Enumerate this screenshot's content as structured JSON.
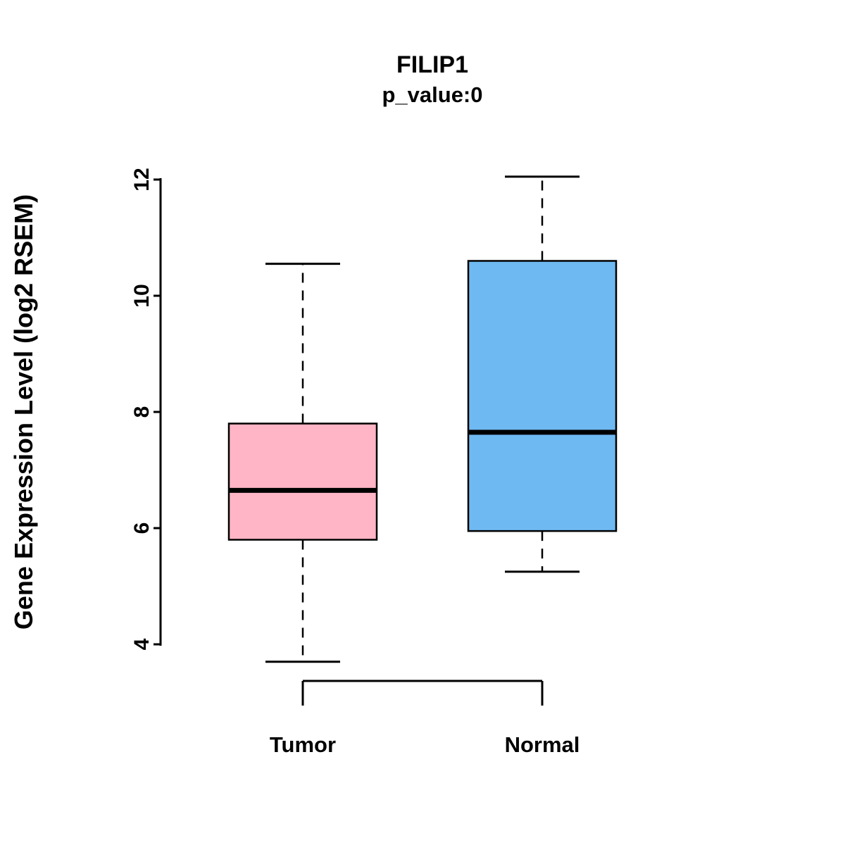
{
  "chart_data": {
    "type": "boxplot",
    "title": "FILIP1",
    "subtitle": "p_value:0",
    "ylabel": "Gene Expression Level (log2 RSEM)",
    "xlabel": "",
    "categories": [
      "Tumor",
      "Normal"
    ],
    "yticks": [
      4,
      6,
      8,
      10,
      12
    ],
    "ylim": [
      3.3,
      12.3
    ],
    "grid": false,
    "legend": "none",
    "series": [
      {
        "name": "Tumor",
        "color": "#FFB5C5",
        "min": 3.7,
        "q1": 5.8,
        "median": 6.65,
        "q3": 7.8,
        "max": 10.55
      },
      {
        "name": "Normal",
        "color": "#6FB9F2",
        "min": 5.25,
        "q1": 5.95,
        "median": 7.65,
        "q3": 10.6,
        "max": 12.05
      }
    ],
    "colors": {
      "box_border": "#000000",
      "median": "#000000",
      "whisker": "#000000",
      "background": "#ffffff"
    }
  }
}
